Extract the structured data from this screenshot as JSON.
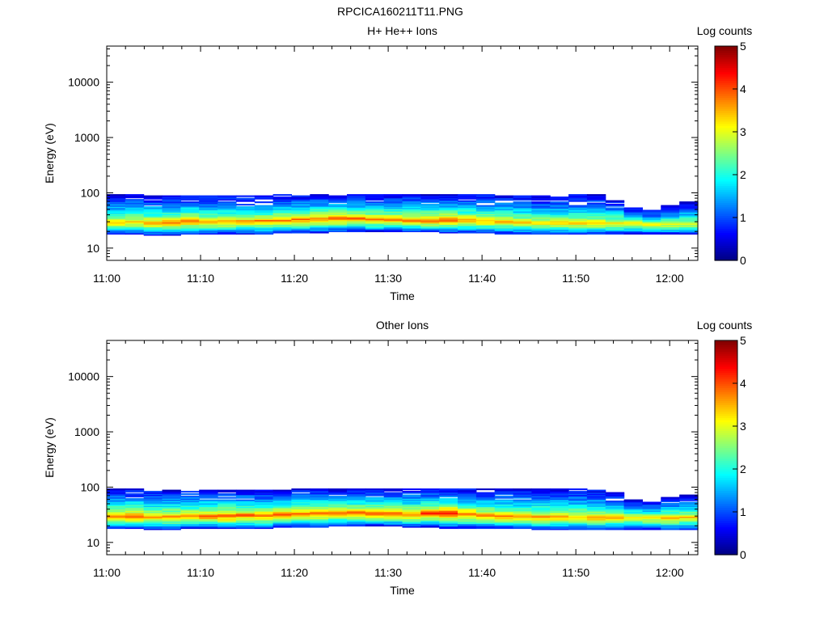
{
  "figure_title": "RPCICA160211T11.PNG",
  "chart_data": [
    {
      "type": "heatmap",
      "title": "H+ He++ Ions",
      "xlabel": "Time",
      "ylabel": "Energy (eV)",
      "x_ticks": [
        "11:00",
        "11:10",
        "11:20",
        "11:30",
        "11:40",
        "11:50",
        "12:00"
      ],
      "x_range": [
        "11:00",
        "12:03"
      ],
      "y_scale": "log",
      "y_range": [
        6,
        45000
      ],
      "y_ticks": [
        {
          "value": 10,
          "label": "10"
        },
        {
          "value": 100,
          "label": "100"
        },
        {
          "value": 1000,
          "label": "1000"
        },
        {
          "value": 10000,
          "label": "10000"
        }
      ],
      "colorbar": {
        "label": "Log counts",
        "min": 0,
        "max": 5,
        "ticks": [
          "0",
          "1",
          "2",
          "3",
          "4",
          "5"
        ],
        "colormap": "jet"
      },
      "band": {
        "time_start": "11:00",
        "time_end": "12:03",
        "energy_low_eV": [
          18,
          18,
          17,
          17,
          18,
          18,
          18,
          18,
          18,
          19,
          19,
          19,
          20,
          20,
          20,
          20,
          20,
          20,
          19,
          19,
          19,
          18,
          18,
          18,
          18,
          18,
          18,
          18,
          18,
          18,
          18,
          18
        ],
        "energy_peak_eV": [
          30,
          31,
          30,
          30,
          32,
          31,
          31,
          32,
          32,
          33,
          34,
          35,
          36,
          36,
          35,
          34,
          33,
          33,
          34,
          33,
          32,
          31,
          30,
          30,
          30,
          29,
          29,
          29,
          29,
          28,
          28,
          28
        ],
        "energy_high_eV": [
          95,
          95,
          92,
          90,
          92,
          92,
          90,
          90,
          92,
          94,
          95,
          95,
          95,
          95,
          94,
          95,
          95,
          95,
          95,
          95,
          95,
          95,
          92,
          88,
          90,
          95,
          95,
          75,
          55,
          50,
          60,
          70
        ],
        "peak_log_counts": [
          3.6,
          3.6,
          3.7,
          3.9,
          3.9,
          3.8,
          3.7,
          3.7,
          3.8,
          3.9,
          3.9,
          4.0,
          4.0,
          3.9,
          3.9,
          3.9,
          4.0,
          4.1,
          4.0,
          3.8,
          3.7,
          3.6,
          3.5,
          3.5,
          3.5,
          3.5,
          3.6,
          3.5,
          3.4,
          3.3,
          3.3,
          3.2
        ]
      }
    },
    {
      "type": "heatmap",
      "title": "Other Ions",
      "xlabel": "Time",
      "ylabel": "Energy (eV)",
      "x_ticks": [
        "11:00",
        "11:10",
        "11:20",
        "11:30",
        "11:40",
        "11:50",
        "12:00"
      ],
      "x_range": [
        "11:00",
        "12:03"
      ],
      "y_scale": "log",
      "y_range": [
        6,
        45000
      ],
      "y_ticks": [
        {
          "value": 10,
          "label": "10"
        },
        {
          "value": 100,
          "label": "100"
        },
        {
          "value": 1000,
          "label": "1000"
        },
        {
          "value": 10000,
          "label": "10000"
        }
      ],
      "colorbar": {
        "label": "Log counts",
        "min": 0,
        "max": 5,
        "ticks": [
          "0",
          "1",
          "2",
          "3",
          "4",
          "5"
        ],
        "colormap": "jet"
      },
      "band": {
        "time_start": "11:00",
        "time_end": "12:03",
        "energy_low_eV": [
          18,
          18,
          17,
          17,
          18,
          18,
          18,
          18,
          18,
          19,
          19,
          19,
          20,
          20,
          20,
          20,
          19,
          19,
          18,
          18,
          18,
          18,
          18,
          17,
          17,
          17,
          17,
          17,
          17,
          17,
          17,
          17
        ],
        "energy_peak_eV": [
          31,
          31,
          30,
          30,
          31,
          31,
          31,
          32,
          32,
          33,
          34,
          35,
          36,
          36,
          35,
          34,
          33,
          35,
          36,
          34,
          32,
          31,
          30,
          30,
          30,
          30,
          29,
          29,
          29,
          29,
          29,
          29
        ],
        "energy_high_eV": [
          95,
          95,
          92,
          90,
          92,
          92,
          90,
          90,
          92,
          95,
          95,
          95,
          95,
          95,
          95,
          95,
          95,
          95,
          95,
          95,
          95,
          95,
          95,
          95,
          95,
          95,
          95,
          80,
          60,
          55,
          65,
          75
        ],
        "peak_log_counts": [
          3.9,
          4.1,
          3.8,
          3.8,
          3.9,
          4.0,
          4.1,
          4.0,
          3.9,
          4.0,
          4.1,
          4.2,
          4.1,
          4.0,
          4.1,
          4.2,
          4.0,
          4.3,
          4.4,
          4.0,
          3.8,
          3.8,
          3.7,
          3.8,
          3.7,
          3.6,
          3.7,
          3.6,
          3.5,
          3.5,
          3.6,
          3.5
        ]
      }
    }
  ]
}
